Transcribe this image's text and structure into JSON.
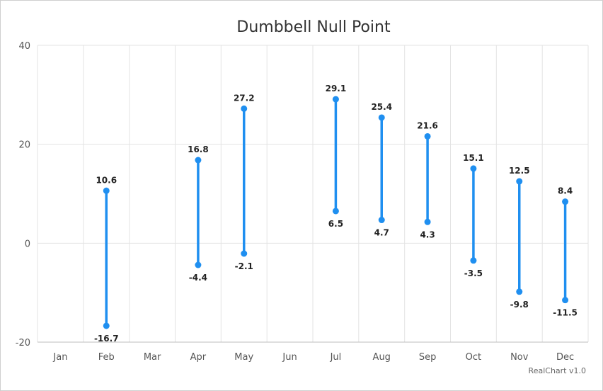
{
  "chart_data": {
    "type": "dumbbell",
    "title": "Dumbbell Null Point",
    "categories": [
      "Jan",
      "Feb",
      "Mar",
      "Apr",
      "May",
      "Jun",
      "Jul",
      "Aug",
      "Sep",
      "Oct",
      "Nov",
      "Dec"
    ],
    "low": [
      null,
      -16.7,
      null,
      -4.4,
      -2.1,
      null,
      6.5,
      4.7,
      4.3,
      -3.5,
      -9.8,
      -11.5
    ],
    "high": [
      null,
      10.6,
      null,
      16.8,
      27.2,
      null,
      29.1,
      25.4,
      21.6,
      15.1,
      12.5,
      8.4
    ],
    "low_labels": [
      "",
      "-16.7",
      "",
      "-4.4",
      "-2.1",
      "",
      "6.5",
      "4.7",
      "4.3",
      "-3.5",
      "-9.8",
      "-11.5"
    ],
    "high_labels": [
      "",
      "10.6",
      "",
      "16.8",
      "27.2",
      "",
      "29.1",
      "25.4",
      "21.6",
      "15.1",
      "12.5",
      "8.4"
    ],
    "ylim": [
      -20,
      40
    ],
    "yticks": [
      -20,
      0,
      20,
      40
    ],
    "ytick_labels": [
      "-20",
      "0",
      "20",
      "40"
    ],
    "grid": true,
    "color": "#1f8ff0"
  },
  "credits": "RealChart v1.0"
}
